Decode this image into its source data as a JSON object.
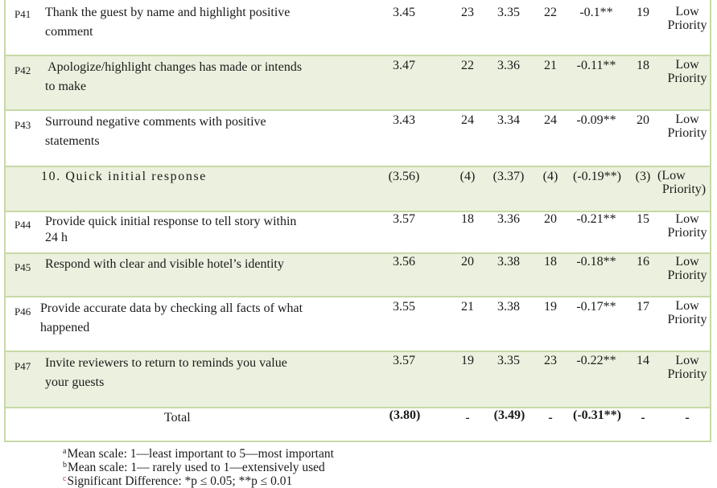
{
  "rows": [
    {
      "code": "P41",
      "text_line1": "Thank the guest by name and highlight positive",
      "text_line2": "comment",
      "m1": "3.45",
      "r1": "23",
      "m2": "3.35",
      "r2": "22",
      "diff": "-0.1**",
      "r3": "19",
      "prio_line1": "Low",
      "prio_line2": "Priority"
    },
    {
      "code": "P42",
      "text_line1": " Apologize/highlight changes has made or intends",
      "text_line2": "to make",
      "m1": "3.47",
      "r1": "22",
      "m2": "3.36",
      "r2": "21",
      "diff": "-0.11**",
      "r3": "18",
      "prio_line1": "Low",
      "prio_line2": "Priority"
    },
    {
      "code": "P43",
      "text_line1": "Surround negative comments with positive",
      "text_line2": "statements",
      "m1": "3.43",
      "r1": "24",
      "m2": "3.34",
      "r2": "24",
      "diff": "-0.09**",
      "r3": "20",
      "prio_line1": "Low",
      "prio_line2": "Priority"
    },
    {
      "code": "",
      "text_line1": "10. Quick initial response",
      "text_line2": "",
      "m1": "(3.56)",
      "r1": "(4)",
      "m2": "(3.37)",
      "r2": "(4)",
      "diff": "(-0.19**)",
      "r3": "(3)",
      "prio_line1": "(Low",
      "prio_line2": "Priority)"
    },
    {
      "code": "P44",
      "text_line1": "Provide quick initial response to tell story within",
      "text_line2": "24 h",
      "m1": "3.57",
      "r1": "18",
      "m2": "3.36",
      "r2": "20",
      "diff": "-0.21**",
      "r3": "15",
      "prio_line1": "Low",
      "prio_line2": "Priority"
    },
    {
      "code": "P45",
      "text_line1": "Respond with clear and visible hotel’s identity",
      "text_line2": "",
      "m1": "3.56",
      "r1": "20",
      "m2": "3.38",
      "r2": "18",
      "diff": "-0.18**",
      "r3": "16",
      "prio_line1": "Low",
      "prio_line2": "Priority"
    },
    {
      "code": "P46",
      "text_line1": "Provide accurate data by checking all facts of what",
      "text_line2": "happened",
      "m1": "3.55",
      "r1": "21",
      "m2": "3.38",
      "r2": "19",
      "diff": "-0.17**",
      "r3": "17",
      "prio_line1": "Low",
      "prio_line2": "Priority"
    },
    {
      "code": "P47",
      "text_line1": "Invite reviewers to return to reminds you value",
      "text_line2": "your guests",
      "m1": "3.57",
      "r1": "19",
      "m2": "3.35",
      "r2": "23",
      "diff": "-0.22**",
      "r3": "14",
      "prio_line1": "Low",
      "prio_line2": "Priority"
    }
  ],
  "total": {
    "label": "Total",
    "m1": "(3.80)",
    "r1": "-",
    "m2": "(3.49)",
    "r2": "-",
    "diff": "(-0.31**)",
    "r3": "-",
    "prio": "-"
  },
  "footnotes": {
    "a_mark": "a",
    "a_text": "Mean scale: 1—least important to 5—most important",
    "b_mark": "b",
    "b_text": "Mean scale: 1— rarely used to 1—extensively used",
    "c_mark": "c",
    "c_text": "Significant Difference: *p ≤ 0.05; **p ≤ 0.01"
  }
}
